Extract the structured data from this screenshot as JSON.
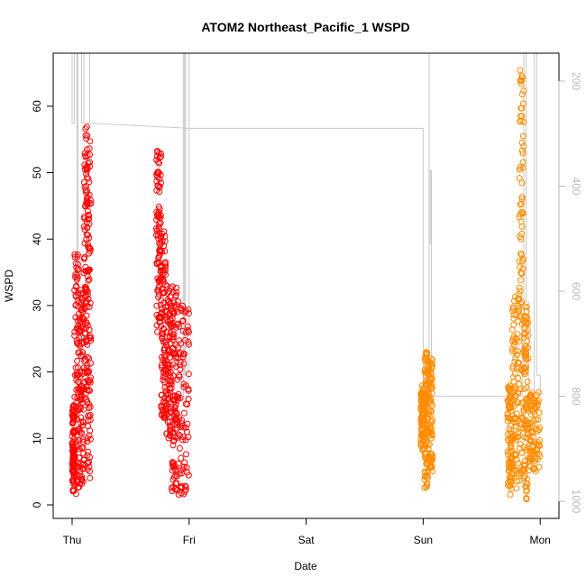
{
  "chart_data": {
    "type": "scatter",
    "title": "ATOM2 Northeast_Pacific_1 WSPD",
    "xlabel": "Date",
    "ylabel": "WSPD",
    "x_ticks": [
      "Thu",
      "Fri",
      "Sat",
      "Sun",
      "Mon"
    ],
    "x_range_days": [
      -0.2,
      4.17
    ],
    "ylim": [
      -2,
      69
    ],
    "y_ticks": [
      0,
      10,
      20,
      30,
      40,
      50,
      60
    ],
    "right_axis": {
      "label": "",
      "ticks": [
        200,
        400,
        600,
        800,
        1000
      ],
      "range_top_to_bottom": [
        150,
        1045
      ],
      "color": "#b8b8b8"
    },
    "grid": false,
    "legend": "none",
    "colors": {
      "series_1": "#ff0000",
      "series_2": "#ff8c00",
      "profile": "#c8c8c8"
    },
    "series": [
      {
        "color": "#ff0000",
        "clusters": [
          {
            "x0": 0.0,
            "x1": 0.02,
            "ymin": 2,
            "ymax": 15
          },
          {
            "x0": 0.02,
            "x1": 0.06,
            "ymin": 1.5,
            "ymax": 38
          },
          {
            "x0": 0.06,
            "x1": 0.1,
            "ymin": 3,
            "ymax": 33
          },
          {
            "x0": 0.1,
            "x1": 0.13,
            "ymin": 15,
            "ymax": 57
          },
          {
            "x0": 0.13,
            "x1": 0.16,
            "ymin": 4,
            "ymax": 57
          },
          {
            "x0": 0.72,
            "x1": 0.76,
            "ymin": 26,
            "ymax": 54
          },
          {
            "x0": 0.76,
            "x1": 0.8,
            "ymin": 13,
            "ymax": 42
          },
          {
            "x0": 0.8,
            "x1": 0.85,
            "ymin": 10,
            "ymax": 33
          },
          {
            "x0": 0.85,
            "x1": 0.9,
            "ymin": 2,
            "ymax": 33
          },
          {
            "x0": 0.9,
            "x1": 1.0,
            "ymin": 1.5,
            "ymax": 31
          }
        ]
      },
      {
        "color": "#ff8c00",
        "clusters": [
          {
            "x0": 2.98,
            "x1": 3.01,
            "ymin": 8,
            "ymax": 18
          },
          {
            "x0": 3.01,
            "x1": 3.04,
            "ymin": 2.5,
            "ymax": 23
          },
          {
            "x0": 3.04,
            "x1": 3.08,
            "ymin": 5,
            "ymax": 22
          },
          {
            "x0": 3.72,
            "x1": 3.76,
            "ymin": 1.5,
            "ymax": 18
          },
          {
            "x0": 3.76,
            "x1": 3.82,
            "ymin": 2,
            "ymax": 32
          },
          {
            "x0": 3.82,
            "x1": 3.86,
            "ymin": 5,
            "ymax": 66
          },
          {
            "x0": 3.86,
            "x1": 3.9,
            "ymin": 0.5,
            "ymax": 30
          },
          {
            "x0": 3.9,
            "x1": 4.0,
            "ymin": 5,
            "ymax": 17
          }
        ]
      }
    ],
    "profile_line": {
      "color": "#c8c8c8",
      "points_day_depth": [
        [
          0.0,
          0
        ],
        [
          0.0,
          280
        ],
        [
          0.02,
          280
        ],
        [
          0.02,
          0
        ],
        [
          0.04,
          0
        ],
        [
          0.04,
          600
        ],
        [
          0.05,
          600
        ],
        [
          0.05,
          0
        ],
        [
          0.08,
          0
        ],
        [
          0.08,
          280
        ],
        [
          0.1,
          280
        ],
        [
          0.1,
          0
        ],
        [
          0.15,
          0
        ],
        [
          0.15,
          280
        ],
        [
          1.0,
          290
        ],
        [
          1.0,
          0
        ],
        [
          0.97,
          0
        ],
        [
          0.97,
          760
        ],
        [
          0.96,
          760
        ],
        [
          0.96,
          0
        ],
        [
          0.95,
          0
        ],
        [
          0.95,
          800
        ],
        [
          1.0,
          800
        ],
        [
          1.0,
          290
        ],
        [
          3.0,
          290
        ],
        [
          3.0,
          760
        ],
        [
          3.0,
          800
        ],
        [
          3.05,
          800
        ],
        [
          3.05,
          0
        ],
        [
          3.05,
          510
        ],
        [
          3.06,
          510
        ],
        [
          3.06,
          370
        ],
        [
          3.07,
          370
        ],
        [
          3.07,
          800
        ],
        [
          3.85,
          800
        ],
        [
          3.85,
          650
        ],
        [
          3.86,
          650
        ],
        [
          3.86,
          0
        ],
        [
          3.88,
          0
        ],
        [
          3.88,
          620
        ],
        [
          3.9,
          620
        ],
        [
          3.9,
          800
        ],
        [
          3.95,
          800
        ],
        [
          3.95,
          0
        ],
        [
          3.97,
          0
        ],
        [
          3.97,
          760
        ],
        [
          4.0,
          760
        ],
        [
          4.0,
          800
        ]
      ]
    }
  }
}
